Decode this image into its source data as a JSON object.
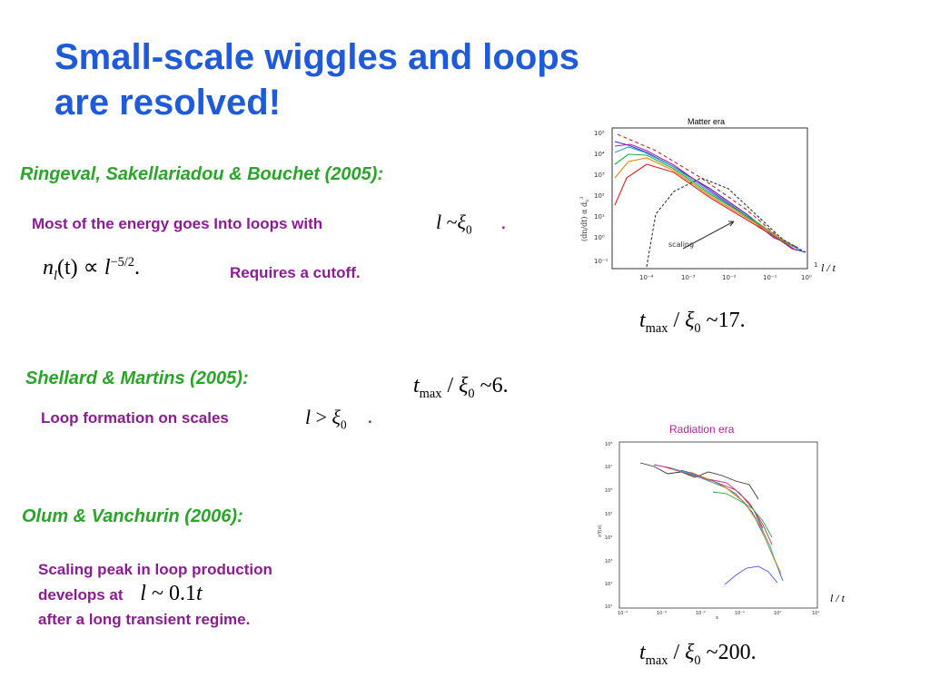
{
  "title": {
    "line1": "Small-scale wiggles and loops",
    "line2": "are resolved!"
  },
  "section1": {
    "heading": "Ringeval, Sakellariadou & Bouchet (2005):",
    "energy_text": "Most of the energy goes Into loops with",
    "energy_math": {
      "l": "l",
      "sim": "~",
      "xi": "ξ",
      "xi_sub": "0",
      "period": "."
    },
    "density_math": {
      "n": "n",
      "n_sub": "l",
      "arg": "(t)",
      "prop": "∝",
      "l": "l",
      "exp": "−5/2",
      "period": "."
    },
    "cutoff_text": "Requires a cutoff.",
    "tmax_math": {
      "t": "t",
      "t_sub": "max",
      "slash": "/",
      "xi": "ξ",
      "xi_sub": "0",
      "sim": "~",
      "value": "17."
    }
  },
  "section2": {
    "heading": "Shellard & Martins (2005):",
    "tmax_math": {
      "t": "t",
      "t_sub": "max",
      "slash": "/",
      "xi": "ξ",
      "xi_sub": "0",
      "sim": "~",
      "value": "6."
    },
    "loop_text": "Loop formation on scales",
    "loop_math": {
      "l": "l",
      "gt": ">",
      "xi": "ξ",
      "xi_sub": "0",
      "period": "."
    }
  },
  "section3": {
    "heading": "Olum & Vanchurin (2006):",
    "line1": "Scaling peak in loop production",
    "line2": "develops at",
    "line2_math": {
      "l": "l",
      "sim": "~",
      "value": "0.1",
      "t": "t"
    },
    "line3": "after a long transient regime.",
    "tmax_math": {
      "t": "t",
      "t_sub": "max",
      "slash": "/",
      "xi": "ξ",
      "xi_sub": "0",
      "sim": "~",
      "value": "200."
    }
  },
  "matter_plot": {
    "title": "Matter era",
    "ylabel": "(dn/dt) α d",
    "ylabel_sub": "h",
    "ylabel_sup": "3",
    "annotation": "scaling",
    "y_ticks": [
      "10⁵",
      "10⁴",
      "10³",
      "10²",
      "10¹",
      "10⁰",
      "10⁻¹"
    ],
    "x_ticks": [
      "10⁻⁴",
      "10⁻³",
      "10⁻²",
      "10⁻¹",
      "10⁰",
      "1"
    ],
    "axis_label": "l / t"
  },
  "radiation_plot": {
    "title": "Radiation era",
    "y_ticks": [
      "10⁸",
      "10⁷",
      "10⁶",
      "10⁵",
      "10⁴",
      "10³",
      "10²",
      "10¹"
    ],
    "x_ticks": [
      "10⁻⁴",
      "10⁻³",
      "10⁻²",
      "10⁻¹",
      "10⁰",
      "10¹"
    ],
    "axis_label": "l / t",
    "ylabel": "x²f(x)",
    "xlabel": "x"
  },
  "colors": {
    "title": "#1f5bd8",
    "heading": "#2aa52a",
    "body": "#8c1c94"
  }
}
